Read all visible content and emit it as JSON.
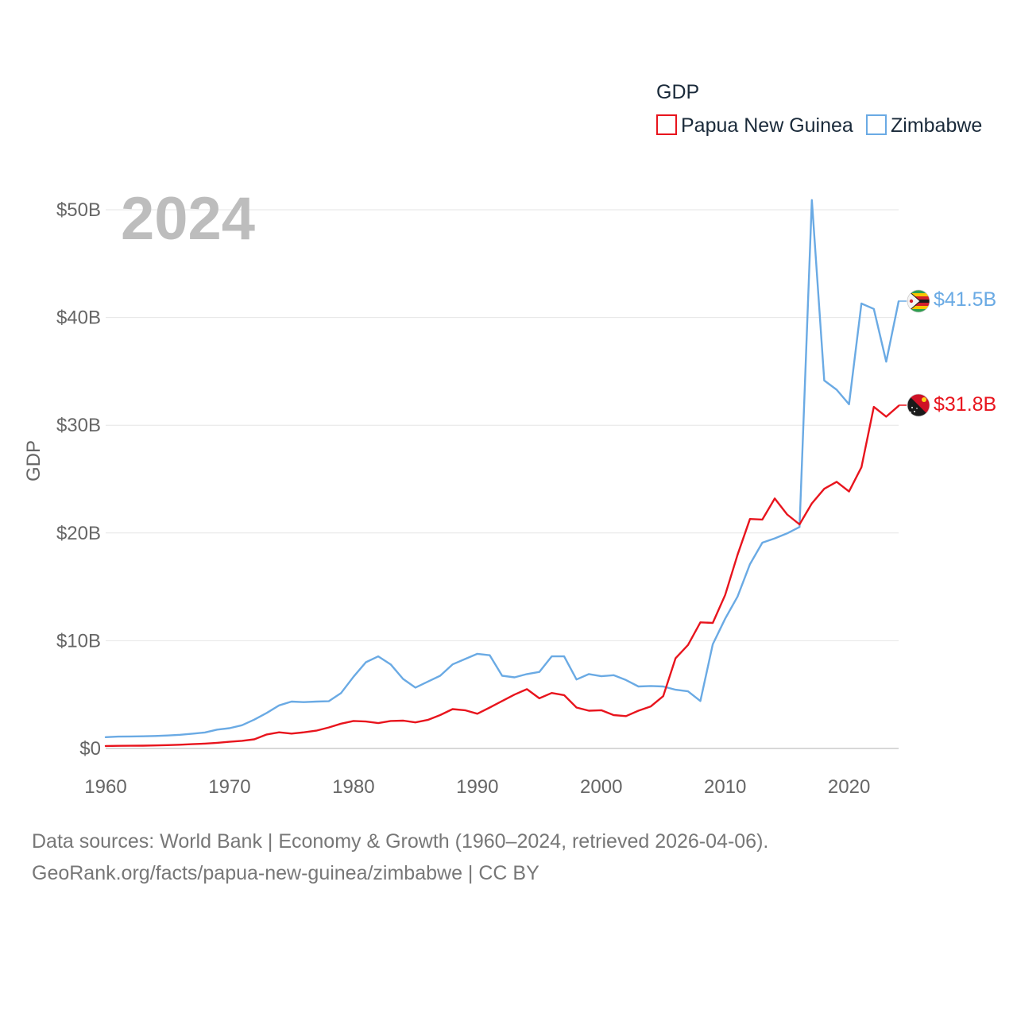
{
  "chart_data": {
    "type": "line",
    "title": "",
    "year_label": "2024",
    "legend_title": "GDP",
    "ylabel": "GDP",
    "xlabel": "",
    "xlim": [
      1960,
      2024
    ],
    "ylim": [
      0,
      50
    ],
    "y_ticks": [
      {
        "value": 0,
        "label": "$0"
      },
      {
        "value": 10,
        "label": "$10B"
      },
      {
        "value": 20,
        "label": "$20B"
      },
      {
        "value": 30,
        "label": "$30B"
      },
      {
        "value": 40,
        "label": "$40B"
      },
      {
        "value": 50,
        "label": "$50B"
      }
    ],
    "x_ticks": [
      {
        "value": 1960,
        "label": "1960"
      },
      {
        "value": 1970,
        "label": "1970"
      },
      {
        "value": 1980,
        "label": "1980"
      },
      {
        "value": 1990,
        "label": "1990"
      },
      {
        "value": 2000,
        "label": "2000"
      },
      {
        "value": 2010,
        "label": "2010"
      },
      {
        "value": 2020,
        "label": "2020"
      }
    ],
    "x": [
      1960,
      1961,
      1962,
      1963,
      1964,
      1965,
      1966,
      1967,
      1968,
      1969,
      1970,
      1971,
      1972,
      1973,
      1974,
      1975,
      1976,
      1977,
      1978,
      1979,
      1980,
      1981,
      1982,
      1983,
      1984,
      1985,
      1986,
      1987,
      1988,
      1989,
      1990,
      1991,
      1992,
      1993,
      1994,
      1995,
      1996,
      1997,
      1998,
      1999,
      2000,
      2001,
      2002,
      2003,
      2004,
      2005,
      2006,
      2007,
      2008,
      2009,
      2010,
      2011,
      2012,
      2013,
      2014,
      2015,
      2016,
      2017,
      2018,
      2019,
      2020,
      2021,
      2022,
      2023,
      2024
    ],
    "series": [
      {
        "name": "Papua New Guinea",
        "color": "#e8141d",
        "flag": "papua-new-guinea-flag-icon",
        "end_label": "$31.8B",
        "values": [
          0.23,
          0.24,
          0.25,
          0.26,
          0.28,
          0.31,
          0.35,
          0.4,
          0.45,
          0.52,
          0.62,
          0.71,
          0.85,
          1.3,
          1.5,
          1.38,
          1.5,
          1.65,
          1.95,
          2.3,
          2.55,
          2.5,
          2.35,
          2.55,
          2.58,
          2.42,
          2.65,
          3.1,
          3.65,
          3.55,
          3.22,
          3.8,
          4.4,
          5.0,
          5.5,
          4.65,
          5.15,
          4.95,
          3.8,
          3.5,
          3.55,
          3.1,
          3.0,
          3.5,
          3.9,
          4.85,
          8.38,
          9.6,
          11.7,
          11.65,
          14.25,
          17.98,
          21.3,
          21.25,
          23.2,
          21.72,
          20.8,
          22.74,
          24.1,
          24.75,
          23.85,
          26.1,
          31.7,
          30.8,
          31.8
        ]
      },
      {
        "name": "Zimbabwe",
        "color": "#6aaae4",
        "flag": "zimbabwe-flag-icon",
        "end_label": "$41.5B",
        "values": [
          1.05,
          1.1,
          1.11,
          1.13,
          1.16,
          1.2,
          1.27,
          1.37,
          1.48,
          1.75,
          1.88,
          2.15,
          2.68,
          3.3,
          4.0,
          4.35,
          4.3,
          4.35,
          4.38,
          5.15,
          6.65,
          8.0,
          8.55,
          7.8,
          6.45,
          5.65,
          6.2,
          6.75,
          7.8,
          8.3,
          8.78,
          8.65,
          6.75,
          6.6,
          6.9,
          7.1,
          8.55,
          8.55,
          6.4,
          6.9,
          6.7,
          6.8,
          6.35,
          5.75,
          5.8,
          5.75,
          5.45,
          5.3,
          4.4,
          9.67,
          12.04,
          14.1,
          17.1,
          19.1,
          19.5,
          19.96,
          20.55,
          50.9,
          34.15,
          33.3,
          31.95,
          41.3,
          40.8,
          35.9,
          41.5
        ]
      }
    ]
  },
  "footer": {
    "line1": "Data sources: World Bank | Economy & Growth (1960–2024, retrieved 2026-04-06).",
    "line2": "GeoRank.org/facts/papua-new-guinea/zimbabwe | CC BY"
  }
}
